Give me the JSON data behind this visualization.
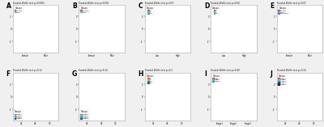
{
  "figure_bg": "#f0f0f0",
  "panel_bg": "#ffffff",
  "panels": [
    {
      "label": "A",
      "title": "Kruskal-Wallis test p<0.0001",
      "groups": [
        "Female",
        "Male"
      ],
      "colors": [
        "#d9534f",
        "#5bc0de"
      ],
      "n_violins": 2,
      "violin_labels": [
        "Female",
        "Male"
      ],
      "legend_loc": "upper left"
    },
    {
      "label": "B",
      "title": "Kruskal-Wallis test p<0.001",
      "groups": [
        "Female",
        "Male"
      ],
      "colors": [
        "#d9534f",
        "#5bc0de"
      ],
      "n_violins": 2,
      "violin_labels": [
        "Female",
        "Male"
      ],
      "legend_loc": "upper left"
    },
    {
      "label": "C",
      "title": "Kruskal-Wallis test p<0.07",
      "groups": [
        "LH",
        "LL",
        "HH"
      ],
      "colors": [
        "#d9534f",
        "#5bc0de",
        "#3aafa9"
      ],
      "n_violins": 2,
      "violin_labels": [
        "Low",
        "High"
      ],
      "legend_loc": "upper left"
    },
    {
      "label": "D",
      "title": "Kruskal-Wallis test p<0.04",
      "groups": [
        "LH",
        "LL",
        "HH"
      ],
      "colors": [
        "#d9534f",
        "#5bc0de",
        "#3aafa9"
      ],
      "n_violins": 2,
      "violin_labels": [
        "Low",
        "High"
      ],
      "legend_loc": "upper left"
    },
    {
      "label": "E",
      "title": "Kruskal-Wallis test p<0.07",
      "groups": [
        "Female",
        "Male",
        "Unknown"
      ],
      "colors": [
        "#d9534f",
        "#5bc0de",
        "#7b68ee"
      ],
      "n_violins": 2,
      "violin_labels": [
        "Female",
        "Male"
      ],
      "legend_loc": "upper left"
    },
    {
      "label": "F",
      "title": "Kruskal-Wallis test p<0.12",
      "groups": [
        "Stage1",
        "Stage2",
        "Stage3",
        "Stage4"
      ],
      "colors": [
        "#d9534f",
        "#5bc0de",
        "#3aafa9",
        "#2c5f8a"
      ],
      "n_violins": 3,
      "violin_labels": [
        "G1",
        "G2",
        "G3"
      ],
      "legend_loc": "lower left"
    },
    {
      "label": "G",
      "title": "Kruskal-Wallis test p<0.14",
      "groups": [
        "Stage1",
        "Stage2",
        "Stage3",
        "Stage4"
      ],
      "colors": [
        "#d9534f",
        "#5bc0de",
        "#3aafa9",
        "#2c5f8a"
      ],
      "n_violins": 3,
      "violin_labels": [
        "G1",
        "G2",
        "G3"
      ],
      "legend_loc": "lower left"
    },
    {
      "label": "H",
      "title": "Kruskal-Wallis test p<0.1",
      "groups": [
        "LH",
        "LL",
        "HH",
        "HL"
      ],
      "colors": [
        "#d9534f",
        "#e8a838",
        "#3aafa9",
        "#2c5f8a"
      ],
      "n_violins": 3,
      "violin_labels": [
        "G1",
        "G2",
        "G3"
      ],
      "legend_loc": "upper left"
    },
    {
      "label": "I",
      "title": "Kruskal-Wallis test p<0.49",
      "groups": [
        "Stage1",
        "Stage2",
        "Stage3"
      ],
      "colors": [
        "#d9534f",
        "#5bc0de",
        "#3aafa9"
      ],
      "n_violins": 3,
      "violin_labels": [
        "Stage1",
        "Stage2",
        "Stage3"
      ],
      "legend_loc": "upper left"
    },
    {
      "label": "J",
      "title": "Kruskal-Wallis test p<0.24",
      "groups": [
        "Stage1",
        "Stage2",
        "Stage3",
        "Stage4",
        "Stage5"
      ],
      "colors": [
        "#d9534f",
        "#5bc0de",
        "#3aafa9",
        "#2c5f8a",
        "#222222"
      ],
      "n_violins": 3,
      "violin_labels": [
        "G1",
        "G2",
        "G3"
      ],
      "legend_loc": "upper left"
    }
  ]
}
